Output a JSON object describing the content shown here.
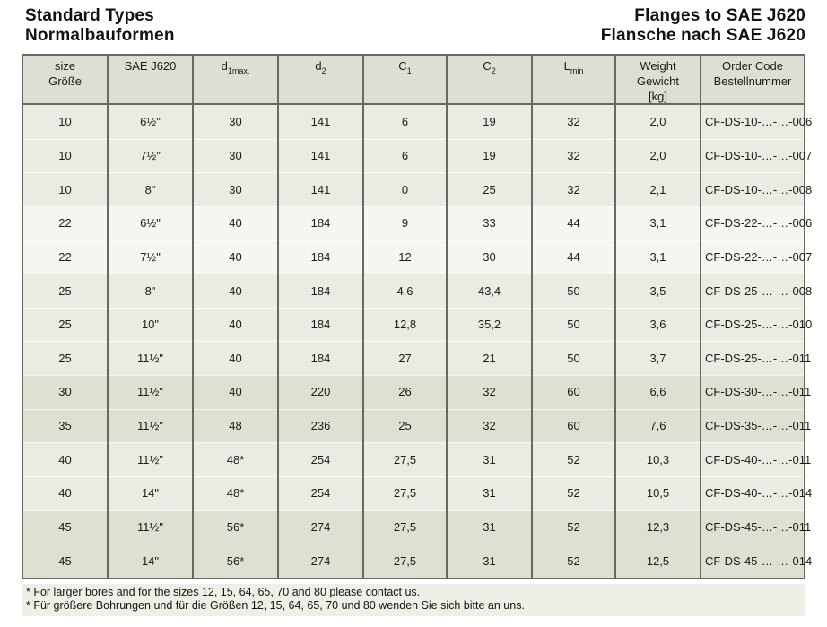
{
  "titles": {
    "left_line1": "Standard Types",
    "left_line2": "Normalbauformen",
    "right_line1": "Flanges to SAE J620",
    "right_line2": "Flansche nach SAE J620"
  },
  "table": {
    "columns": [
      {
        "line1": "size",
        "line2": "Größe"
      },
      {
        "line1": "SAE J620"
      },
      {
        "base": "d",
        "sub": "1max."
      },
      {
        "base": "d",
        "sub": "2"
      },
      {
        "base": "C",
        "sub": "1"
      },
      {
        "base": "C",
        "sub": "2"
      },
      {
        "base": "L",
        "sub": "min"
      },
      {
        "line1": "Weight",
        "line2": "Gewicht",
        "line3": "[kg]"
      },
      {
        "line1": "Order Code",
        "line2": "Bestellnummer"
      }
    ],
    "rows": [
      {
        "shade": "medium",
        "cells": [
          "10",
          "6½\"",
          "30",
          "141",
          "6",
          "19",
          "32",
          "2,0",
          "CF-DS-10-…-…-006"
        ]
      },
      {
        "shade": "medium",
        "cells": [
          "10",
          "7½\"",
          "30",
          "141",
          "6",
          "19",
          "32",
          "2,0",
          "CF-DS-10-…-…-007"
        ]
      },
      {
        "shade": "medium",
        "cells": [
          "10",
          "8\"",
          "30",
          "141",
          "0",
          "25",
          "32",
          "2,1",
          "CF-DS-10-…-…-008"
        ]
      },
      {
        "shade": "light",
        "cells": [
          "22",
          "6½\"",
          "40",
          "184",
          "9",
          "33",
          "44",
          "3,1",
          "CF-DS-22-…-…-006"
        ]
      },
      {
        "shade": "light",
        "cells": [
          "22",
          "7½\"",
          "40",
          "184",
          "12",
          "30",
          "44",
          "3,1",
          "CF-DS-22-…-…-007"
        ]
      },
      {
        "shade": "medium",
        "cells": [
          "25",
          "8\"",
          "40",
          "184",
          "4,6",
          "43,4",
          "50",
          "3,5",
          "CF-DS-25-…-…-008"
        ]
      },
      {
        "shade": "medium",
        "cells": [
          "25",
          "10\"",
          "40",
          "184",
          "12,8",
          "35,2",
          "50",
          "3,6",
          "CF-DS-25-…-…-010"
        ]
      },
      {
        "shade": "medium",
        "cells": [
          "25",
          "11½\"",
          "40",
          "184",
          "27",
          "21",
          "50",
          "3,7",
          "CF-DS-25-…-…-011"
        ]
      },
      {
        "shade": "dark",
        "cells": [
          "30",
          "11½\"",
          "40",
          "220",
          "26",
          "32",
          "60",
          "6,6",
          "CF-DS-30-…-…-011"
        ]
      },
      {
        "shade": "dark",
        "cells": [
          "35",
          "11½\"",
          "48",
          "236",
          "25",
          "32",
          "60",
          "7,6",
          "CF-DS-35-…-…-011"
        ]
      },
      {
        "shade": "medium",
        "cells": [
          "40",
          "11½\"",
          "48*",
          "254",
          "27,5",
          "31",
          "52",
          "10,3",
          "CF-DS-40-…-…-011"
        ]
      },
      {
        "shade": "medium",
        "cells": [
          "40",
          "14\"",
          "48*",
          "254",
          "27,5",
          "31",
          "52",
          "10,5",
          "CF-DS-40-…-…-014"
        ]
      },
      {
        "shade": "dark",
        "cells": [
          "45",
          "11½\"",
          "56*",
          "274",
          "27,5",
          "31",
          "52",
          "12,3",
          "CF-DS-45-…-…-011"
        ]
      },
      {
        "shade": "dark",
        "cells": [
          "45",
          "14\"",
          "56*",
          "274",
          "27,5",
          "31",
          "52",
          "12,5",
          "CF-DS-45-…-…-014"
        ]
      }
    ]
  },
  "footnotes": {
    "line1": "* For larger bores and for the sizes 12, 15, 64, 65, 70 and 80 please contact us.",
    "line2": "* Für größere Bohrungen und für die Größen 12, 15, 64, 65, 70 und 80 wenden Sie sich bitte an uns."
  },
  "colors": {
    "header_bg": "#dcdfd3",
    "band_medium": "#e9ece2",
    "band_light": "#f4f6f0",
    "band_dark": "#dde1d2",
    "border": "#666b62",
    "footnote_bg": "#eef0e7",
    "text": "#1c1c1c"
  }
}
